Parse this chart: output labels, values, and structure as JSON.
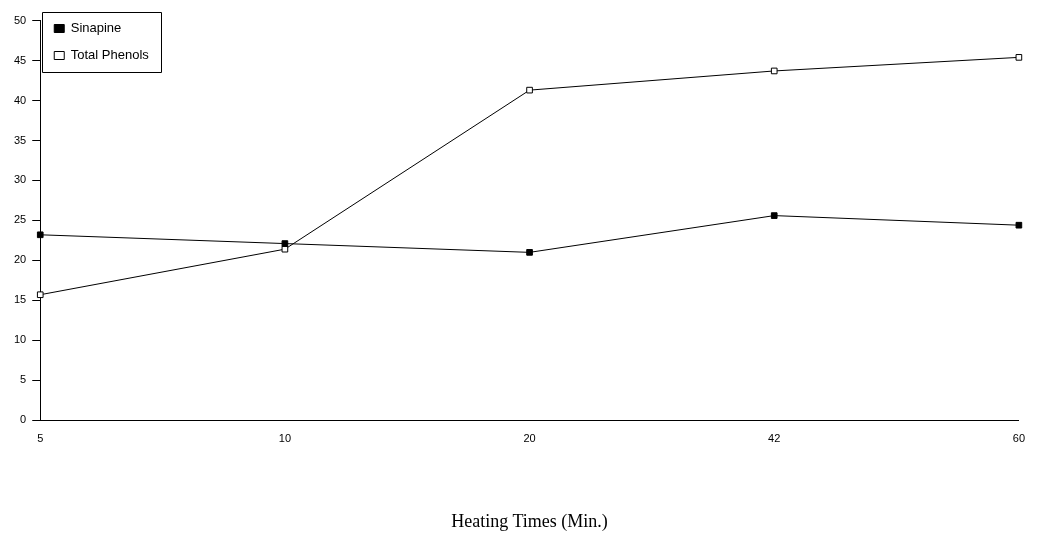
{
  "chart_data": {
    "type": "line",
    "xlabel": "Heating Times (Min.)",
    "categories": [
      "5",
      "10",
      "20",
      "42",
      "60"
    ],
    "series": [
      {
        "name": "Sinapine",
        "color": "#000000",
        "values": [
          23.2,
          22.1,
          21.0,
          25.6,
          24.4
        ]
      },
      {
        "name": "Total Phenols",
        "color": "#000000",
        "values": [
          15.7,
          21.4,
          41.3,
          43.7,
          45.4
        ]
      }
    ],
    "ylim": [
      0,
      50
    ],
    "yticks": [
      0,
      5,
      10,
      15,
      20,
      25,
      30,
      35,
      40,
      45,
      50
    ],
    "grid": false,
    "legend": "top left",
    "marker": "square",
    "line_style": "solid"
  }
}
